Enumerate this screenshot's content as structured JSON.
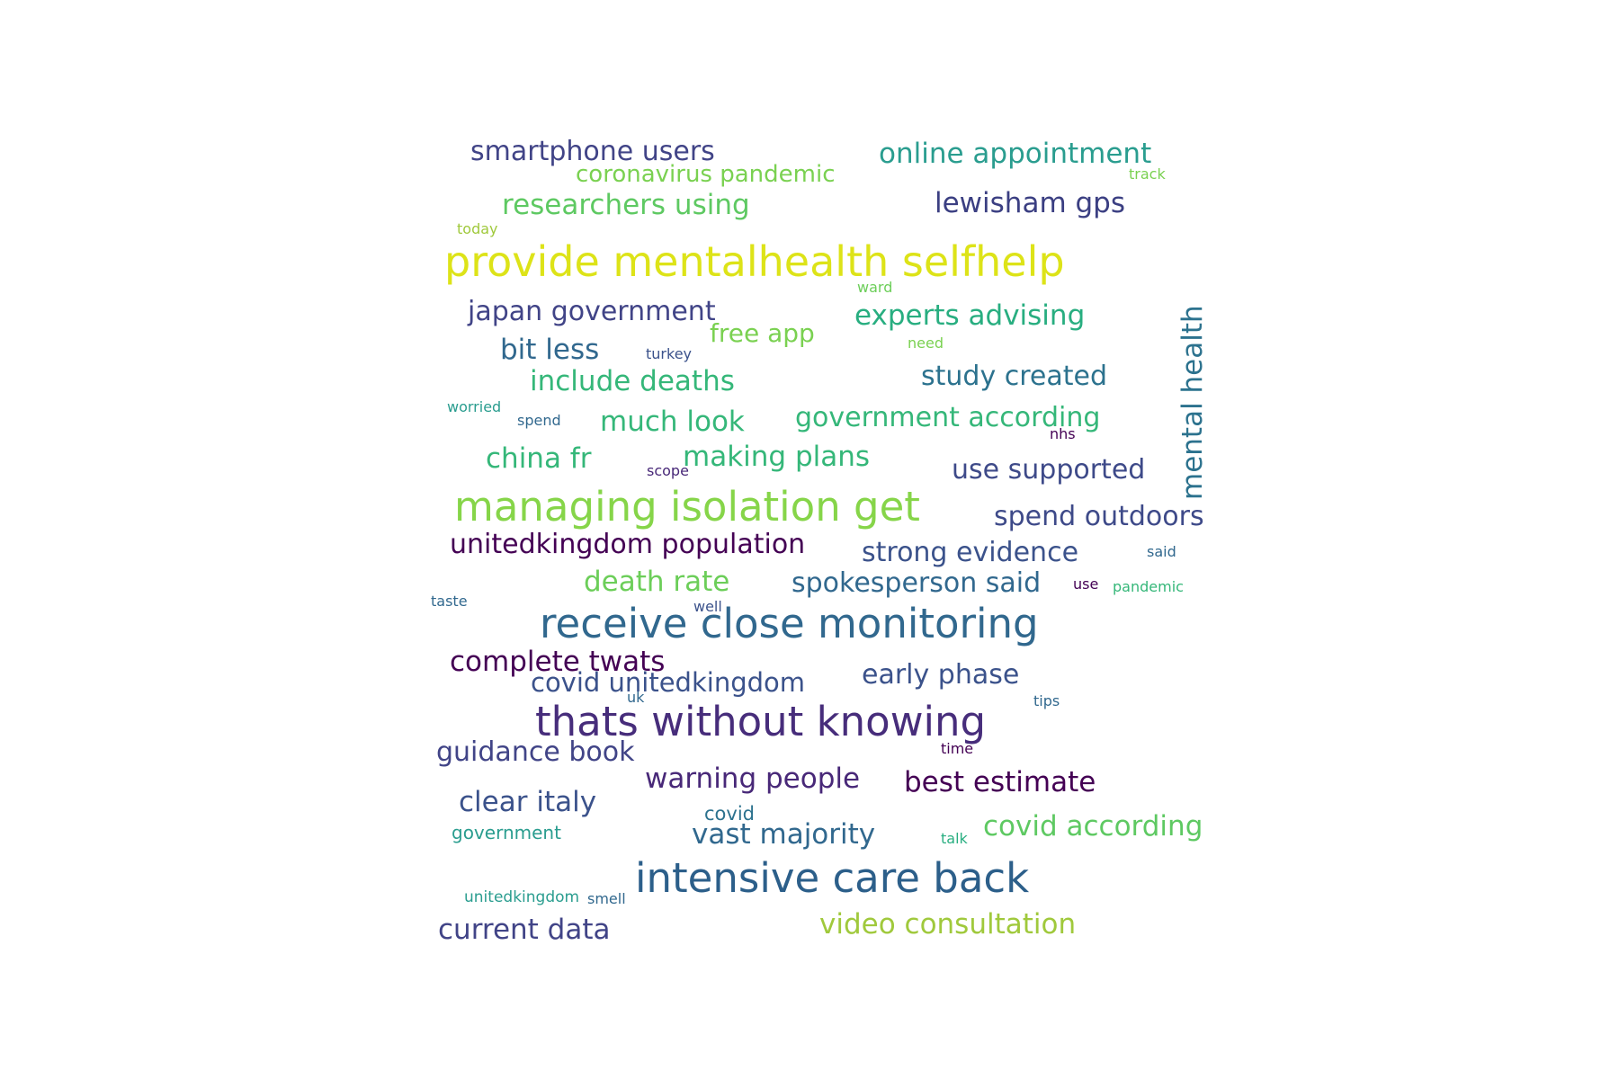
{
  "cloud": {
    "words": [
      {
        "text": "smartphone users",
        "color": "#414487"
      },
      {
        "text": "coronavirus pandemic",
        "color": "#7ad151"
      },
      {
        "text": "online appointment",
        "color": "#2a9d8f"
      },
      {
        "text": "track",
        "color": "#7ad151"
      },
      {
        "text": "researchers using",
        "color": "#5ec962"
      },
      {
        "text": "lewisham gps",
        "color": "#3b3f82"
      },
      {
        "text": "today",
        "color": "#a0c93c"
      },
      {
        "text": "provide mentalhealth selfhelp",
        "color": "#dde318"
      },
      {
        "text": "mental health",
        "color": "#2c728e"
      },
      {
        "text": "ward",
        "color": "#6cce59"
      },
      {
        "text": "japan government",
        "color": "#414487"
      },
      {
        "text": "experts advising",
        "color": "#28ae80"
      },
      {
        "text": "free app",
        "color": "#7ad151"
      },
      {
        "text": "need",
        "color": "#7ad151"
      },
      {
        "text": "bit less",
        "color": "#31688e"
      },
      {
        "text": "turkey",
        "color": "#3b528b"
      },
      {
        "text": "study created",
        "color": "#2c728e"
      },
      {
        "text": "include deaths",
        "color": "#35b779"
      },
      {
        "text": "worried",
        "color": "#2a9d8f"
      },
      {
        "text": "spend",
        "color": "#31688e"
      },
      {
        "text": "much look",
        "color": "#35b779"
      },
      {
        "text": "government according",
        "color": "#35b779"
      },
      {
        "text": "nhs",
        "color": "#440154"
      },
      {
        "text": "china fr",
        "color": "#35b779"
      },
      {
        "text": "making plans",
        "color": "#35b779"
      },
      {
        "text": "scope",
        "color": "#482878"
      },
      {
        "text": "use supported",
        "color": "#3e4a89"
      },
      {
        "text": "managing isolation get",
        "color": "#86d549"
      },
      {
        "text": "spend outdoors",
        "color": "#3e4a89"
      },
      {
        "text": "unitedkingdom population",
        "color": "#440154"
      },
      {
        "text": "strong evidence",
        "color": "#3b528b"
      },
      {
        "text": "said",
        "color": "#31688e"
      },
      {
        "text": "death rate",
        "color": "#6cce59"
      },
      {
        "text": "spokesperson said",
        "color": "#31688e"
      },
      {
        "text": "use",
        "color": "#440154"
      },
      {
        "text": "pandemic",
        "color": "#35b779"
      },
      {
        "text": "taste",
        "color": "#31688e"
      },
      {
        "text": "well",
        "color": "#3b528b"
      },
      {
        "text": "receive close monitoring",
        "color": "#31688e"
      },
      {
        "text": "complete twats",
        "color": "#440154"
      },
      {
        "text": "covid unitedkingdom",
        "color": "#3b528b"
      },
      {
        "text": "early phase",
        "color": "#3b528b"
      },
      {
        "text": "uk",
        "color": "#31688e"
      },
      {
        "text": "tips",
        "color": "#31688e"
      },
      {
        "text": "thats without knowing",
        "color": "#472d7b"
      },
      {
        "text": "guidance book",
        "color": "#414487"
      },
      {
        "text": "time",
        "color": "#440154"
      },
      {
        "text": "warning people",
        "color": "#482878"
      },
      {
        "text": "best estimate",
        "color": "#440154"
      },
      {
        "text": "clear italy",
        "color": "#3b528b"
      },
      {
        "text": "covid",
        "color": "#2c728e"
      },
      {
        "text": "government",
        "color": "#2a9d8f"
      },
      {
        "text": "vast majority",
        "color": "#31688e"
      },
      {
        "text": "talk",
        "color": "#28ae80"
      },
      {
        "text": "covid according",
        "color": "#5ec962"
      },
      {
        "text": "intensive care back",
        "color": "#2c5f8a"
      },
      {
        "text": "unitedkingdom",
        "color": "#2a9d8f"
      },
      {
        "text": "smell",
        "color": "#31688e"
      },
      {
        "text": "current data",
        "color": "#414487"
      },
      {
        "text": "video consultation",
        "color": "#a0c93c"
      }
    ]
  }
}
